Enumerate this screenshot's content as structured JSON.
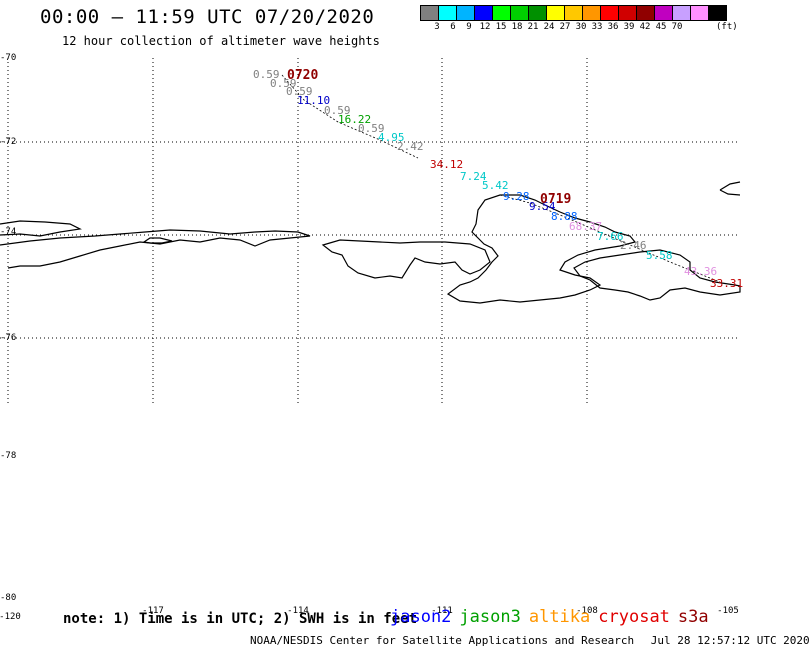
{
  "header": {
    "title": "00:00 – 11:59 UTC 07/20/2020",
    "subtitle": "12 hour collection of altimeter wave heights"
  },
  "colorbar": {
    "unit_label": "(ft)",
    "colors": [
      "#808080",
      "#00ffff",
      "#00b4ff",
      "#0000ff",
      "#00ff00",
      "#00d000",
      "#009000",
      "#ffff00",
      "#ffc800",
      "#ff9600",
      "#ff0000",
      "#d00000",
      "#900000",
      "#c000c0",
      "#c8a0ff",
      "#ff90ff",
      "#000000"
    ],
    "tick_labels": [
      "3",
      "6",
      "9",
      "12",
      "15",
      "18",
      "21",
      "24",
      "27",
      "30",
      "33",
      "36",
      "39",
      "42",
      "45",
      "70"
    ]
  },
  "axes": {
    "lat_labels": [
      "-70",
      "-72",
      "-74",
      "-76",
      "-78",
      "-80"
    ],
    "lon_labels": [
      "-120",
      "-117",
      "-114",
      "-111",
      "-108",
      "-105"
    ]
  },
  "track_labels": {
    "t0720": "0720",
    "t0719": "0719"
  },
  "wave_heights": [
    {
      "value": "0.59",
      "color": "#808080"
    },
    {
      "value": "0.59",
      "color": "#808080"
    },
    {
      "value": "0.59",
      "color": "#808080"
    },
    {
      "value": "11.10",
      "color": "#0000c8"
    },
    {
      "value": "0.59",
      "color": "#808080"
    },
    {
      "value": "16.22",
      "color": "#00a000"
    },
    {
      "value": "0.59",
      "color": "#808080"
    },
    {
      "value": "4.95",
      "color": "#00c8c8"
    },
    {
      "value": "2.42",
      "color": "#808080"
    },
    {
      "value": "34.12",
      "color": "#c00000"
    },
    {
      "value": "7.24",
      "color": "#00c8c8"
    },
    {
      "value": "5.42",
      "color": "#00c8c8"
    },
    {
      "value": "9.28",
      "color": "#0064ff"
    },
    {
      "value": "9.54",
      "color": "#0000c8"
    },
    {
      "value": "8.88",
      "color": "#0064ff"
    },
    {
      "value": "68.37",
      "color": "#e090e0"
    },
    {
      "value": "7.66",
      "color": "#00c8c8"
    },
    {
      "value": "2.46",
      "color": "#808080"
    },
    {
      "value": "5.58",
      "color": "#00c8c8"
    },
    {
      "value": "43.36",
      "color": "#e090e0"
    },
    {
      "value": "33.31",
      "color": "#c00000"
    }
  ],
  "footer": {
    "note": "note: 1) Time is in UTC; 2) SWH is in feet",
    "missions": [
      {
        "name": "jason2",
        "color": "#0000ff"
      },
      {
        "name": "jason3",
        "color": "#00a000"
      },
      {
        "name": "altika",
        "color": "#ff9600"
      },
      {
        "name": "cryosat",
        "color": "#e00000"
      },
      {
        "name": "s3a",
        "color": "#900000"
      }
    ],
    "credit": "NOAA/NESDIS Center for Satellite Applications and Research",
    "timestamp": "Jul 28 12:57:12 UTC 2020"
  }
}
